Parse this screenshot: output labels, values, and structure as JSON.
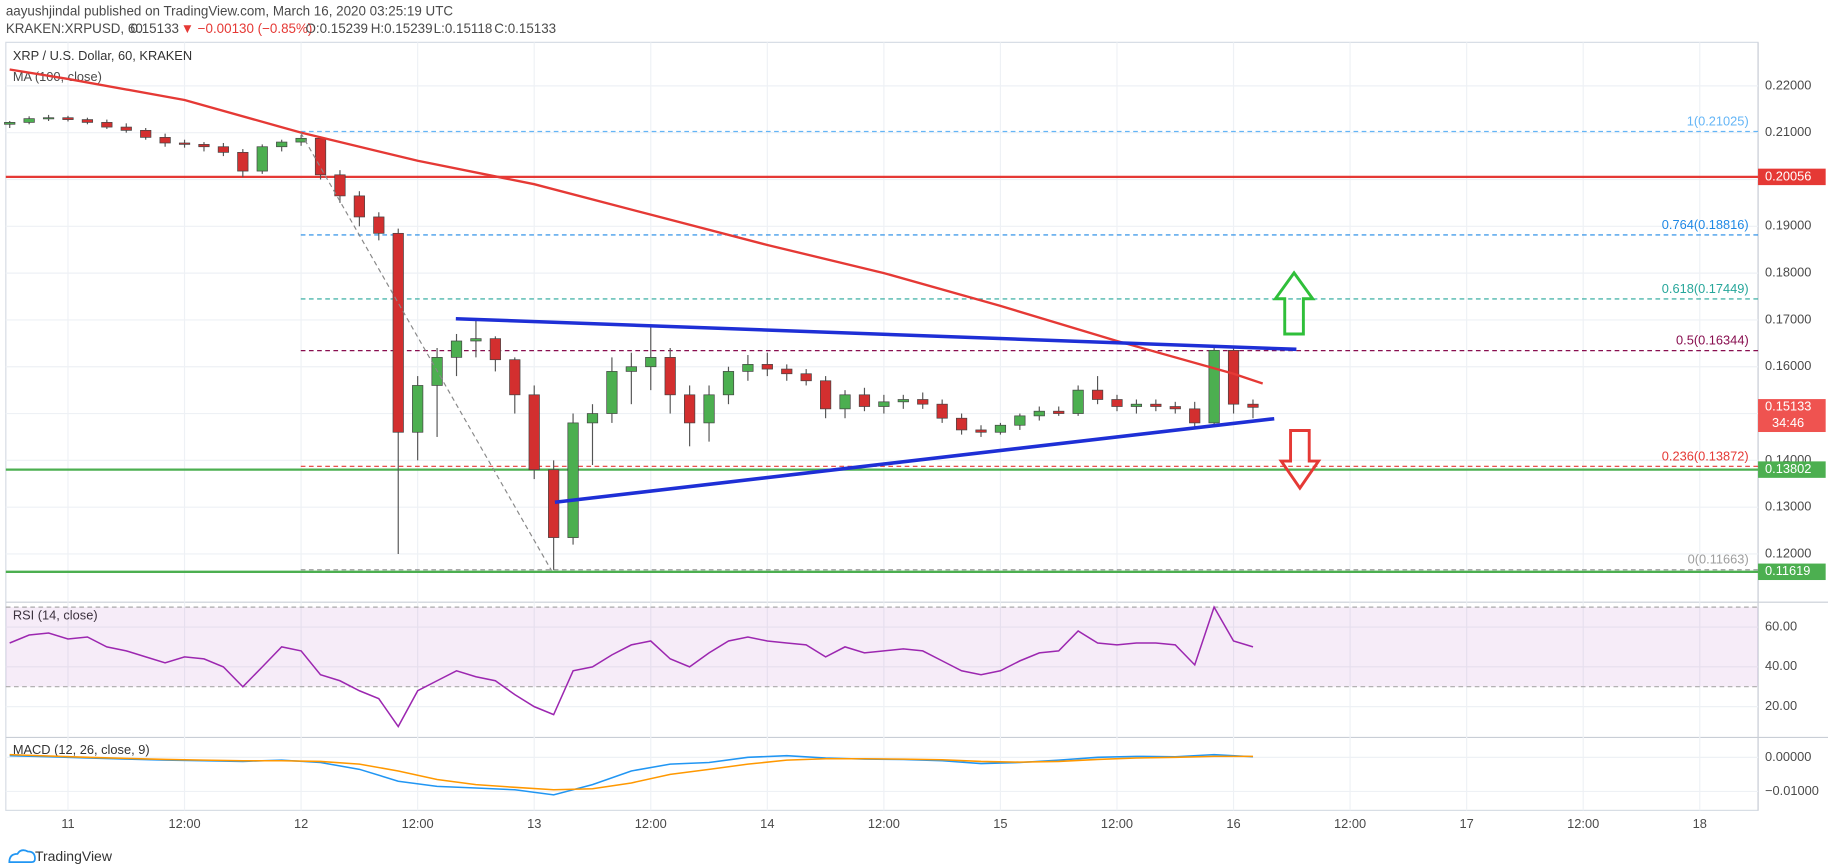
{
  "header": {
    "publisher": "aayushjindal published on TradingView.com, March 16, 2020 03:25:19 UTC",
    "symbol": "KRAKEN:XRPUSD, 60",
    "last": "0.15133",
    "change": "▼ −0.00130 (−0.85%)",
    "open": "O:0.15239",
    "high": "H:0.15239",
    "low": "L:0.15118",
    "close": "C:0.15133"
  },
  "footer": {
    "brand": "TradingView"
  },
  "chart_data": [
    {
      "type": "candlestick",
      "title": "XRP / U.S. Dollar, 60, KRAKEN",
      "subtitle": "MA (100, close)",
      "up_color": "#4caf50",
      "down_color": "#d32f2f",
      "x": [
        -6,
        -4,
        -2,
        0,
        2,
        4,
        6,
        8,
        10,
        12,
        14,
        16,
        18,
        20,
        22,
        24,
        26,
        28,
        30,
        32,
        34,
        36,
        38,
        40,
        42,
        44,
        46,
        48,
        50,
        52,
        54,
        56,
        58,
        60,
        62,
        64,
        66,
        68,
        70,
        72,
        74,
        76,
        78,
        80,
        82,
        84,
        86,
        88,
        90,
        92,
        94,
        96,
        98,
        100,
        102,
        104,
        106,
        108,
        110,
        112,
        114,
        116,
        118,
        120,
        122
      ],
      "open": [
        0.2118,
        0.2122,
        0.213,
        0.2132,
        0.2128,
        0.2122,
        0.2112,
        0.2105,
        0.209,
        0.2078,
        0.2075,
        0.207,
        0.2058,
        0.2018,
        0.207,
        0.208,
        0.2088,
        0.201,
        0.1965,
        0.192,
        0.1885,
        0.146,
        0.156,
        0.162,
        0.1655,
        0.166,
        0.1615,
        0.154,
        0.138,
        0.1235,
        0.148,
        0.15,
        0.159,
        0.16,
        0.162,
        0.154,
        0.148,
        0.154,
        0.159,
        0.1605,
        0.1595,
        0.1585,
        0.157,
        0.151,
        0.154,
        0.1515,
        0.1525,
        0.153,
        0.152,
        0.149,
        0.1465,
        0.146,
        0.1475,
        0.1495,
        0.1505,
        0.15,
        0.155,
        0.153,
        0.1515,
        0.152,
        0.1515,
        0.151,
        0.148,
        0.1635,
        0.152
      ],
      "high": [
        0.2125,
        0.2135,
        0.2138,
        0.2136,
        0.2132,
        0.2128,
        0.212,
        0.211,
        0.2098,
        0.2085,
        0.208,
        0.2078,
        0.2065,
        0.2075,
        0.2085,
        0.2095,
        0.2092,
        0.202,
        0.1975,
        0.193,
        0.1895,
        0.158,
        0.164,
        0.167,
        0.17,
        0.1665,
        0.162,
        0.156,
        0.14,
        0.15,
        0.152,
        0.162,
        0.163,
        0.169,
        0.164,
        0.156,
        0.156,
        0.16,
        0.1625,
        0.163,
        0.1605,
        0.1595,
        0.158,
        0.155,
        0.1555,
        0.154,
        0.154,
        0.1545,
        0.153,
        0.15,
        0.1475,
        0.148,
        0.15,
        0.1515,
        0.1515,
        0.156,
        0.158,
        0.154,
        0.153,
        0.153,
        0.1525,
        0.1525,
        0.164,
        0.1645,
        0.153
      ],
      "low": [
        0.211,
        0.2118,
        0.2125,
        0.2124,
        0.2118,
        0.2108,
        0.21,
        0.2085,
        0.207,
        0.2068,
        0.206,
        0.205,
        0.2005,
        0.2012,
        0.206,
        0.2072,
        0.2,
        0.195,
        0.19,
        0.187,
        0.12,
        0.14,
        0.145,
        0.158,
        0.162,
        0.159,
        0.15,
        0.136,
        0.1166,
        0.122,
        0.139,
        0.148,
        0.152,
        0.155,
        0.15,
        0.143,
        0.144,
        0.152,
        0.157,
        0.158,
        0.157,
        0.156,
        0.149,
        0.149,
        0.1505,
        0.15,
        0.151,
        0.151,
        0.148,
        0.1455,
        0.145,
        0.1455,
        0.1465,
        0.1485,
        0.1495,
        0.1495,
        0.152,
        0.1505,
        0.15,
        0.1505,
        0.15,
        0.147,
        0.1475,
        0.15,
        0.149
      ],
      "close": [
        0.2122,
        0.213,
        0.2132,
        0.2128,
        0.2122,
        0.2112,
        0.2105,
        0.209,
        0.2078,
        0.2075,
        0.207,
        0.2058,
        0.2018,
        0.207,
        0.208,
        0.2088,
        0.201,
        0.1965,
        0.192,
        0.1885,
        0.146,
        0.156,
        0.162,
        0.1655,
        0.166,
        0.1615,
        0.154,
        0.138,
        0.1235,
        0.148,
        0.15,
        0.159,
        0.16,
        0.162,
        0.154,
        0.148,
        0.154,
        0.159,
        0.1605,
        0.1595,
        0.1585,
        0.157,
        0.151,
        0.154,
        0.1515,
        0.1525,
        0.153,
        0.152,
        0.149,
        0.1465,
        0.146,
        0.1475,
        0.1495,
        0.1505,
        0.15,
        0.155,
        0.153,
        0.1515,
        0.152,
        0.1515,
        0.151,
        0.148,
        0.1635,
        0.152,
        0.15133
      ],
      "ma": {
        "color": "#e53935",
        "x": [
          -6,
          0,
          12,
          24,
          36,
          48,
          60,
          72,
          84,
          96,
          108,
          120,
          123
        ],
        "values": [
          0.2235,
          0.2215,
          0.217,
          0.21,
          0.204,
          0.199,
          0.1925,
          0.186,
          0.18,
          0.173,
          0.1655,
          0.1585,
          0.1564
        ]
      },
      "levels": [
        {
          "value": 0.20056,
          "color": "#e53935"
        },
        {
          "value": 0.13802,
          "color": "#4caf50"
        },
        {
          "value": 0.11619,
          "color": "#4caf50"
        }
      ],
      "last": {
        "value": 0.15133,
        "countdown": "34:46",
        "color": "#ef5350"
      },
      "fib": [
        {
          "value": 0.21025,
          "label": "1(0.21025)",
          "color": "#64b5f6"
        },
        {
          "value": 0.18816,
          "label": "0.764(0.18816)",
          "color": "#1e88e5"
        },
        {
          "value": 0.17449,
          "label": "0.618(0.17449)",
          "color": "#26a69a"
        },
        {
          "value": 0.16344,
          "label": "0.5(0.16344)",
          "color": "#880e4f"
        },
        {
          "value": 0.13872,
          "label": "0.236(0.13872)",
          "color": "#e53935"
        },
        {
          "value": 0.11663,
          "label": "0(0.11663)",
          "color": "#9e9e9e"
        }
      ],
      "xlim": [
        -6.4,
        174
      ],
      "ylim": [
        0.1102,
        0.2288
      ],
      "yticks": [
        {
          "value": 0.12,
          "label": "0.12000"
        },
        {
          "value": 0.13,
          "label": "0.13000"
        },
        {
          "value": 0.14,
          "label": "0.14000"
        },
        {
          "value": 0.15,
          "label": "0.15000"
        },
        {
          "value": 0.16,
          "label": "0.16000"
        },
        {
          "value": 0.17,
          "label": "0.17000"
        },
        {
          "value": 0.18,
          "label": "0.18000"
        },
        {
          "value": 0.19,
          "label": "0.19000"
        },
        {
          "value": 0.2,
          "label": "0.20000"
        },
        {
          "value": 0.21,
          "label": "0.21000"
        },
        {
          "value": 0.22,
          "label": "0.22000"
        }
      ],
      "grid": true
    },
    {
      "type": "line",
      "title": "RSI (14, close)",
      "band": [
        30,
        70
      ],
      "band_color": "#9c27b0",
      "x": [
        -6,
        -4,
        -2,
        0,
        2,
        4,
        6,
        8,
        10,
        12,
        14,
        16,
        18,
        20,
        22,
        24,
        26,
        28,
        30,
        32,
        34,
        36,
        38,
        40,
        42,
        44,
        46,
        48,
        50,
        52,
        54,
        56,
        58,
        60,
        62,
        64,
        66,
        68,
        70,
        72,
        74,
        76,
        78,
        80,
        82,
        84,
        86,
        88,
        90,
        92,
        94,
        96,
        98,
        100,
        102,
        104,
        106,
        108,
        110,
        112,
        114,
        116,
        118,
        120,
        122
      ],
      "series": [
        {
          "color": "#9c27b0",
          "values": [
            52,
            56,
            57,
            54,
            55,
            50,
            48,
            45,
            42,
            45,
            44,
            40,
            30,
            40,
            50,
            48,
            36,
            33,
            28,
            24,
            10,
            28,
            33,
            38,
            35,
            33,
            26,
            20,
            16,
            38,
            40,
            46,
            51,
            53,
            44,
            40,
            47,
            53,
            55,
            53,
            52,
            51,
            45,
            50,
            47,
            48,
            49,
            48,
            43,
            38,
            36,
            38,
            43,
            47,
            48,
            58,
            52,
            51,
            52,
            52,
            51,
            41,
            70,
            53,
            50
          ]
        }
      ],
      "xlim": [
        -6.4,
        174
      ],
      "ylim": [
        5.1,
        71.3
      ],
      "yticks": [
        {
          "value": 20,
          "label": "20.00"
        },
        {
          "value": 40,
          "label": "40.00"
        },
        {
          "value": 60,
          "label": "60.00"
        }
      ],
      "grid": true
    },
    {
      "type": "line",
      "title": "MACD (12, 26, close, 9)",
      "x": [
        -6,
        -2,
        2,
        6,
        10,
        14,
        18,
        22,
        26,
        30,
        34,
        38,
        42,
        46,
        50,
        54,
        58,
        62,
        66,
        70,
        74,
        78,
        82,
        86,
        90,
        94,
        98,
        102,
        106,
        110,
        114,
        118,
        122
      ],
      "series": [
        {
          "color": "#2196f3",
          "values": [
            0.0005,
            0.0002,
            -0.0002,
            -0.0005,
            -0.0008,
            -0.001,
            -0.0012,
            -0.0008,
            -0.0015,
            -0.0035,
            -0.007,
            -0.0085,
            -0.009,
            -0.0095,
            -0.011,
            -0.008,
            -0.004,
            -0.002,
            -0.0015,
            0.0,
            0.0005,
            -0.0002,
            -0.0005,
            -0.0006,
            -0.001,
            -0.0018,
            -0.0015,
            -0.0008,
            0.0,
            0.0003,
            0.0002,
            0.0008,
            0.0002
          ]
        },
        {
          "color": "#ff9800",
          "values": [
            0.0008,
            0.0004,
            0.0,
            -0.0003,
            -0.0006,
            -0.0008,
            -0.001,
            -0.001,
            -0.0012,
            -0.002,
            -0.004,
            -0.0065,
            -0.008,
            -0.0088,
            -0.0095,
            -0.0092,
            -0.0075,
            -0.005,
            -0.0035,
            -0.002,
            -0.0008,
            -0.0004,
            -0.0004,
            -0.0005,
            -0.0007,
            -0.0012,
            -0.0014,
            -0.0012,
            -0.0006,
            -0.0002,
            0.0,
            0.0003,
            0.0003
          ]
        }
      ],
      "xlim": [
        -6.4,
        174
      ],
      "ylim": [
        -0.0152,
        0.0055
      ],
      "yticks": [
        {
          "value": -0.01,
          "label": "−0.01000"
        },
        {
          "value": 0,
          "label": "0.00000"
        }
      ],
      "xticks": [
        {
          "value": 0,
          "label": "11"
        },
        {
          "value": 12,
          "label": "12:00"
        },
        {
          "value": 24,
          "label": "12"
        },
        {
          "value": 36,
          "label": "12:00"
        },
        {
          "value": 48,
          "label": "13"
        },
        {
          "value": 60,
          "label": "12:00"
        },
        {
          "value": 72,
          "label": "14"
        },
        {
          "value": 84,
          "label": "12:00"
        },
        {
          "value": 96,
          "label": "15"
        },
        {
          "value": 108,
          "label": "12:00"
        },
        {
          "value": 120,
          "label": "16"
        },
        {
          "value": 132,
          "label": "12:00"
        },
        {
          "value": 144,
          "label": "17"
        },
        {
          "value": 156,
          "label": "12:00"
        },
        {
          "value": 168,
          "label": "18"
        }
      ],
      "grid": true
    }
  ]
}
